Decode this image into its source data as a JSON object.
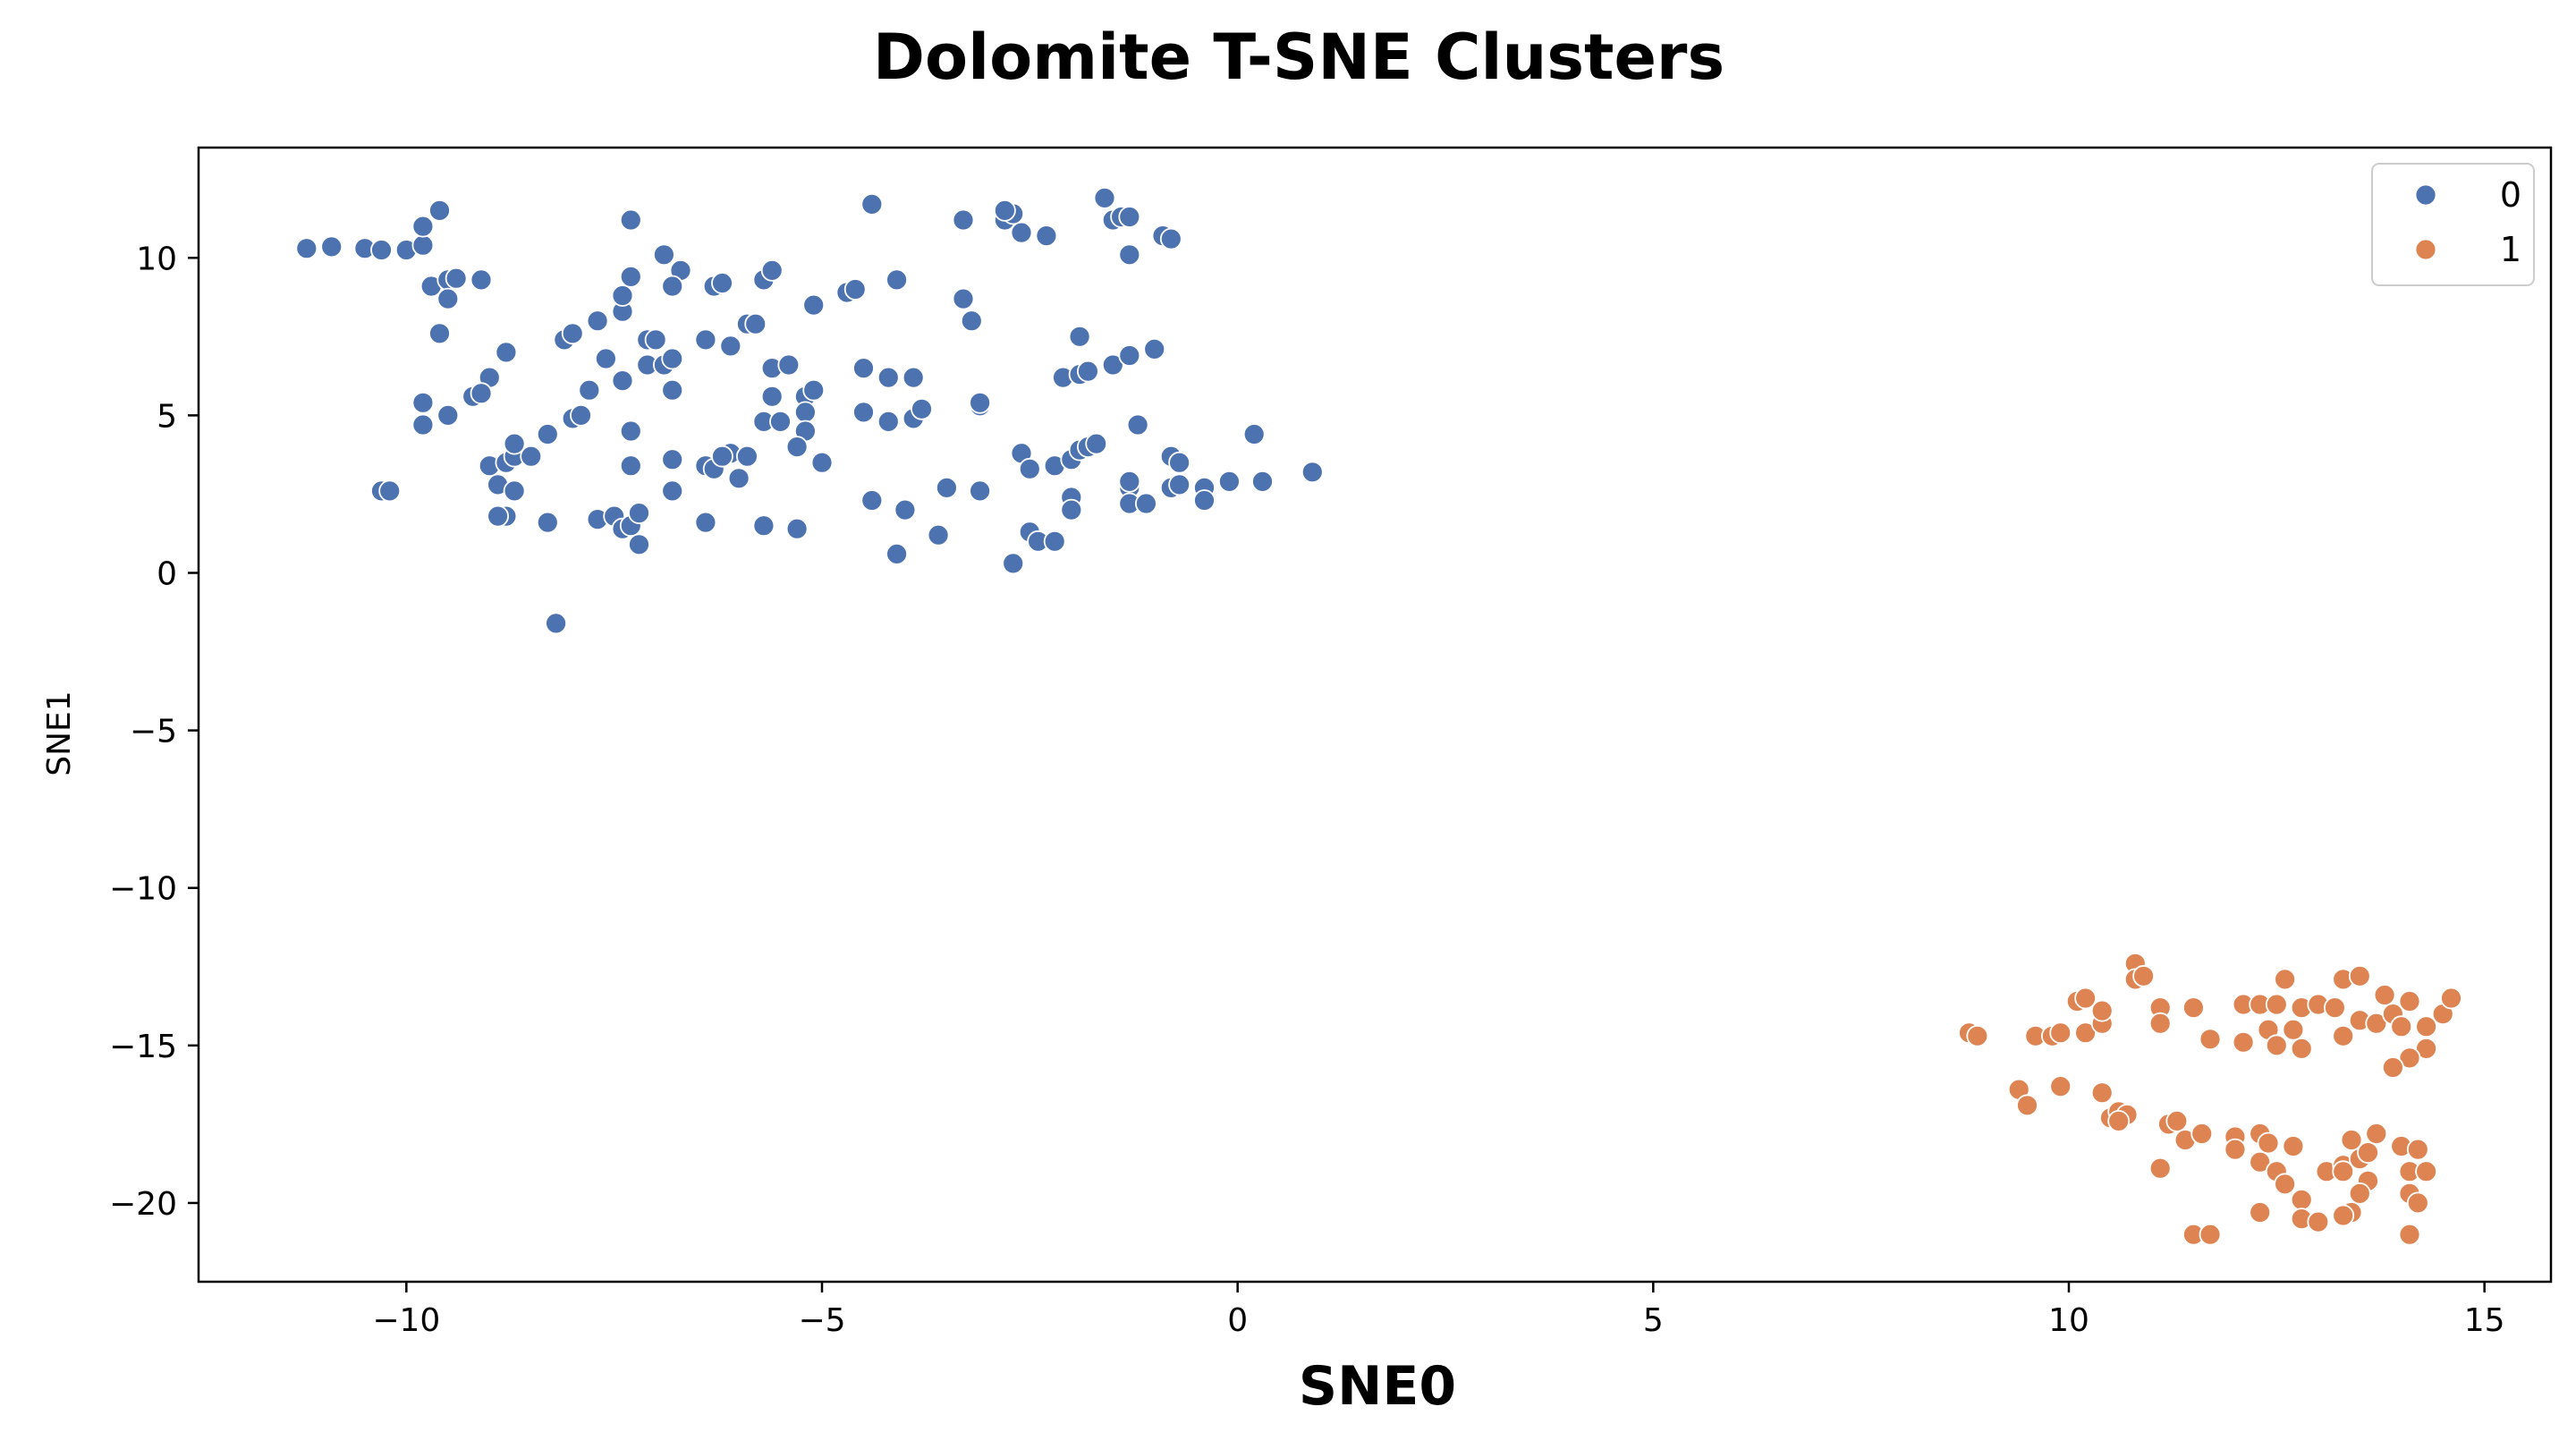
{
  "chart_data": {
    "type": "scatter",
    "title": "Dolomite T-SNE Clusters",
    "xlabel": "SNE0",
    "ylabel": "SNE1",
    "xlim": [
      -12.5,
      15.8
    ],
    "ylim": [
      -22.5,
      13.5
    ],
    "xticks": [
      -10,
      -5,
      0,
      5,
      10,
      15
    ],
    "yticks": [
      10,
      5,
      0,
      -5,
      -10,
      -15,
      -20
    ],
    "xtick_labels": [
      "−10",
      "−5",
      "0",
      "5",
      "10",
      "15"
    ],
    "ytick_labels": [
      "10",
      "5",
      "0",
      "−5",
      "−10",
      "−15",
      "−20"
    ],
    "grid": false,
    "legend": {
      "placement": "top-right",
      "entries": [
        "0",
        "1"
      ]
    },
    "series": [
      {
        "name": "0",
        "color": "#4c72b0",
        "points": [
          [
            -11.2,
            10.3
          ],
          [
            -10.9,
            10.35
          ],
          [
            -10.5,
            10.3
          ],
          [
            -10.3,
            10.25
          ],
          [
            -10.0,
            10.25
          ],
          [
            -9.8,
            10.4
          ],
          [
            -9.8,
            11.0
          ],
          [
            -9.6,
            11.5
          ],
          [
            -9.7,
            9.1
          ],
          [
            -9.5,
            9.3
          ],
          [
            -9.4,
            9.35
          ],
          [
            -9.1,
            9.3
          ],
          [
            -9.5,
            8.7
          ],
          [
            -9.6,
            7.6
          ],
          [
            -9.8,
            5.4
          ],
          [
            -9.8,
            4.7
          ],
          [
            -9.5,
            5.0
          ],
          [
            -9.2,
            5.6
          ],
          [
            -9.0,
            6.2
          ],
          [
            -8.8,
            7.0
          ],
          [
            -9.1,
            5.7
          ],
          [
            -9.0,
            3.4
          ],
          [
            -8.8,
            3.5
          ],
          [
            -8.7,
            3.7
          ],
          [
            -8.5,
            3.7
          ],
          [
            -8.7,
            4.1
          ],
          [
            -8.9,
            2.8
          ],
          [
            -8.7,
            2.6
          ],
          [
            -8.8,
            1.8
          ],
          [
            -8.9,
            1.8
          ],
          [
            -10.3,
            2.6
          ],
          [
            -10.2,
            2.6
          ],
          [
            -8.3,
            4.4
          ],
          [
            -8.3,
            1.6
          ],
          [
            -8.2,
            -1.6
          ],
          [
            -8.1,
            7.4
          ],
          [
            -8.0,
            7.6
          ],
          [
            -7.8,
            5.8
          ],
          [
            -8.0,
            4.9
          ],
          [
            -7.9,
            5.0
          ],
          [
            -7.7,
            8.0
          ],
          [
            -7.6,
            6.8
          ],
          [
            -7.4,
            8.3
          ],
          [
            -7.4,
            8.8
          ],
          [
            -7.3,
            9.4
          ],
          [
            -7.3,
            11.2
          ],
          [
            -7.1,
            7.4
          ],
          [
            -7.0,
            7.4
          ],
          [
            -6.9,
            10.1
          ],
          [
            -6.7,
            9.6
          ],
          [
            -6.8,
            9.1
          ],
          [
            -7.4,
            6.1
          ],
          [
            -7.1,
            6.6
          ],
          [
            -6.9,
            6.6
          ],
          [
            -6.8,
            6.8
          ],
          [
            -6.8,
            5.8
          ],
          [
            -7.3,
            4.5
          ],
          [
            -7.3,
            3.4
          ],
          [
            -6.8,
            3.6
          ],
          [
            -6.8,
            2.6
          ],
          [
            -7.7,
            1.7
          ],
          [
            -7.5,
            1.8
          ],
          [
            -7.4,
            1.4
          ],
          [
            -7.3,
            1.5
          ],
          [
            -7.2,
            1.9
          ],
          [
            -7.2,
            0.9
          ],
          [
            -6.4,
            7.4
          ],
          [
            -6.3,
            9.1
          ],
          [
            -6.2,
            9.2
          ],
          [
            -6.1,
            7.2
          ],
          [
            -5.9,
            7.9
          ],
          [
            -5.8,
            7.9
          ],
          [
            -5.7,
            9.3
          ],
          [
            -5.6,
            9.6
          ],
          [
            -5.6,
            6.5
          ],
          [
            -5.4,
            6.6
          ],
          [
            -5.6,
            5.6
          ],
          [
            -5.7,
            4.8
          ],
          [
            -5.5,
            4.8
          ],
          [
            -5.2,
            5.6
          ],
          [
            -5.1,
            5.8
          ],
          [
            -5.2,
            5.1
          ],
          [
            -5.2,
            4.5
          ],
          [
            -5.3,
            4.0
          ],
          [
            -5.0,
            3.5
          ],
          [
            -6.4,
            3.4
          ],
          [
            -6.3,
            3.3
          ],
          [
            -6.1,
            3.8
          ],
          [
            -6.2,
            3.7
          ],
          [
            -5.9,
            3.7
          ],
          [
            -6.0,
            3.0
          ],
          [
            -6.4,
            1.6
          ],
          [
            -5.7,
            1.5
          ],
          [
            -5.3,
            1.4
          ],
          [
            -5.1,
            8.5
          ],
          [
            -4.7,
            8.9
          ],
          [
            -4.6,
            9.0
          ],
          [
            -4.4,
            11.7
          ],
          [
            -4.1,
            9.3
          ],
          [
            -4.5,
            6.5
          ],
          [
            -4.2,
            6.2
          ],
          [
            -3.9,
            6.2
          ],
          [
            -4.5,
            5.1
          ],
          [
            -4.2,
            4.8
          ],
          [
            -3.9,
            4.9
          ],
          [
            -3.8,
            5.2
          ],
          [
            -4.4,
            2.3
          ],
          [
            -4.0,
            2.0
          ],
          [
            -4.1,
            0.6
          ],
          [
            -3.6,
            1.2
          ],
          [
            -3.5,
            2.7
          ],
          [
            -3.3,
            8.7
          ],
          [
            -3.2,
            8.0
          ],
          [
            -3.3,
            11.2
          ],
          [
            -3.1,
            5.3
          ],
          [
            -3.1,
            5.4
          ],
          [
            -3.1,
            2.6
          ],
          [
            -2.8,
            11.2
          ],
          [
            -2.7,
            11.4
          ],
          [
            -2.8,
            11.5
          ],
          [
            -2.6,
            10.8
          ],
          [
            -2.3,
            10.7
          ],
          [
            -2.6,
            3.8
          ],
          [
            -2.5,
            3.3
          ],
          [
            -2.2,
            3.4
          ],
          [
            -2.0,
            3.6
          ],
          [
            -1.9,
            3.9
          ],
          [
            -1.8,
            4.0
          ],
          [
            -1.7,
            4.1
          ],
          [
            -2.0,
            2.4
          ],
          [
            -2.0,
            2.0
          ],
          [
            -2.5,
            1.3
          ],
          [
            -2.4,
            1.0
          ],
          [
            -2.2,
            1.0
          ],
          [
            -2.7,
            0.3
          ],
          [
            -2.1,
            6.2
          ],
          [
            -1.9,
            6.3
          ],
          [
            -1.8,
            6.4
          ],
          [
            -1.9,
            7.5
          ],
          [
            -1.5,
            6.6
          ],
          [
            -1.3,
            6.9
          ],
          [
            -1.0,
            7.1
          ],
          [
            -1.2,
            4.7
          ],
          [
            -1.6,
            11.9
          ],
          [
            -1.5,
            11.2
          ],
          [
            -1.4,
            11.3
          ],
          [
            -1.3,
            11.3
          ],
          [
            -1.3,
            10.1
          ],
          [
            -0.9,
            10.7
          ],
          [
            -0.8,
            10.6
          ],
          [
            -1.3,
            2.7
          ],
          [
            -1.3,
            2.9
          ],
          [
            -1.3,
            2.2
          ],
          [
            -1.1,
            2.2
          ],
          [
            -0.8,
            2.7
          ],
          [
            -0.7,
            2.8
          ],
          [
            -0.8,
            3.7
          ],
          [
            -0.7,
            3.5
          ],
          [
            -0.4,
            2.7
          ],
          [
            -0.4,
            2.3
          ],
          [
            -0.1,
            2.9
          ],
          [
            0.2,
            4.4
          ],
          [
            0.3,
            2.9
          ],
          [
            0.9,
            3.2
          ]
        ]
      },
      {
        "name": "1",
        "color": "#dd8452",
        "points": [
          [
            8.8,
            -14.6
          ],
          [
            8.9,
            -14.7
          ],
          [
            9.6,
            -14.7
          ],
          [
            9.8,
            -14.7
          ],
          [
            9.9,
            -14.6
          ],
          [
            10.1,
            -13.6
          ],
          [
            10.2,
            -13.5
          ],
          [
            10.2,
            -14.6
          ],
          [
            10.4,
            -14.3
          ],
          [
            10.4,
            -13.9
          ],
          [
            10.8,
            -12.4
          ],
          [
            10.8,
            -12.9
          ],
          [
            10.9,
            -12.8
          ],
          [
            11.1,
            -13.8
          ],
          [
            11.1,
            -14.3
          ],
          [
            11.5,
            -13.8
          ],
          [
            11.7,
            -14.8
          ],
          [
            12.1,
            -13.7
          ],
          [
            12.1,
            -14.9
          ],
          [
            12.3,
            -13.7
          ],
          [
            12.5,
            -13.7
          ],
          [
            12.4,
            -14.5
          ],
          [
            12.5,
            -15.0
          ],
          [
            12.7,
            -14.5
          ],
          [
            12.8,
            -15.1
          ],
          [
            12.6,
            -12.9
          ],
          [
            12.8,
            -13.8
          ],
          [
            13.0,
            -13.7
          ],
          [
            13.2,
            -13.8
          ],
          [
            13.3,
            -14.7
          ],
          [
            13.5,
            -14.2
          ],
          [
            13.3,
            -12.9
          ],
          [
            13.5,
            -12.8
          ],
          [
            13.8,
            -13.4
          ],
          [
            13.7,
            -14.3
          ],
          [
            13.9,
            -14.0
          ],
          [
            14.0,
            -14.4
          ],
          [
            14.1,
            -13.6
          ],
          [
            14.3,
            -14.4
          ],
          [
            14.5,
            -14.0
          ],
          [
            14.6,
            -13.5
          ],
          [
            14.3,
            -15.1
          ],
          [
            14.1,
            -15.4
          ],
          [
            13.9,
            -15.7
          ],
          [
            9.4,
            -16.4
          ],
          [
            9.5,
            -16.9
          ],
          [
            9.9,
            -16.3
          ],
          [
            10.4,
            -16.5
          ],
          [
            10.5,
            -17.3
          ],
          [
            10.6,
            -17.1
          ],
          [
            10.7,
            -17.2
          ],
          [
            10.6,
            -17.4
          ],
          [
            11.1,
            -18.9
          ],
          [
            11.2,
            -17.5
          ],
          [
            11.3,
            -17.4
          ],
          [
            11.4,
            -18.0
          ],
          [
            11.6,
            -17.8
          ],
          [
            11.5,
            -21.0
          ],
          [
            11.7,
            -21.0
          ],
          [
            12.0,
            -17.9
          ],
          [
            12.0,
            -18.3
          ],
          [
            12.3,
            -17.8
          ],
          [
            12.4,
            -18.1
          ],
          [
            12.3,
            -18.7
          ],
          [
            12.5,
            -19.0
          ],
          [
            12.7,
            -18.2
          ],
          [
            12.6,
            -19.4
          ],
          [
            12.8,
            -19.9
          ],
          [
            12.8,
            -20.5
          ],
          [
            13.0,
            -20.6
          ],
          [
            12.3,
            -20.3
          ],
          [
            13.1,
            -19.0
          ],
          [
            13.3,
            -18.8
          ],
          [
            13.4,
            -18.0
          ],
          [
            13.3,
            -19.0
          ],
          [
            13.5,
            -18.6
          ],
          [
            13.6,
            -18.4
          ],
          [
            13.7,
            -17.8
          ],
          [
            13.6,
            -19.3
          ],
          [
            13.5,
            -19.7
          ],
          [
            13.4,
            -20.3
          ],
          [
            13.3,
            -20.4
          ],
          [
            14.0,
            -18.2
          ],
          [
            14.2,
            -18.3
          ],
          [
            14.1,
            -19.0
          ],
          [
            14.3,
            -19.0
          ],
          [
            14.1,
            -19.7
          ],
          [
            14.2,
            -20.0
          ],
          [
            14.1,
            -21.0
          ]
        ]
      }
    ]
  }
}
